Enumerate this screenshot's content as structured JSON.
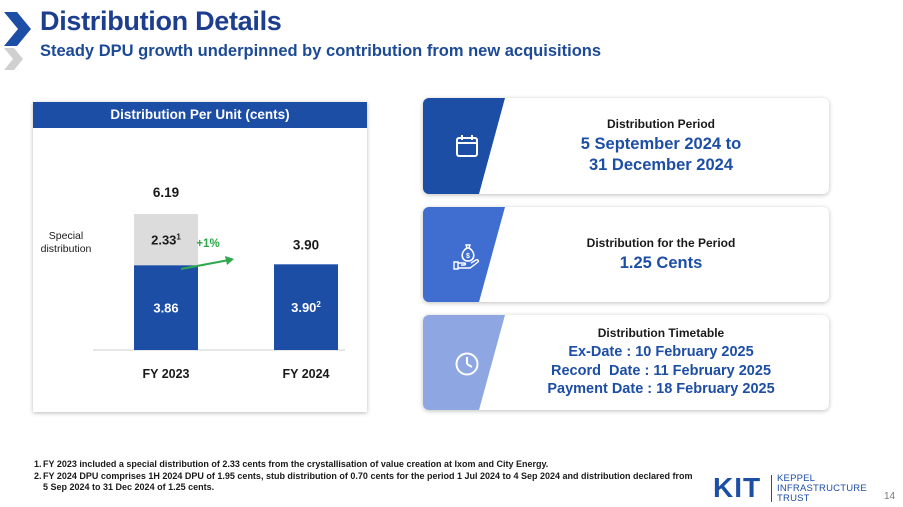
{
  "header": {
    "title": "Distribution Details",
    "subtitle": "Steady DPU growth underpinned by contribution from new acquisitions"
  },
  "chart": {
    "header_label": "Distribution Per Unit (cents)",
    "special_label_line1": "Special",
    "special_label_line2": "distribution",
    "growth_label": "+1%",
    "colors": {
      "base": "#1d4ea5",
      "special": "#dcdcdc",
      "growth_arrow": "#2ea84a"
    }
  },
  "chart_data": {
    "type": "bar",
    "categories": [
      "FY 2023",
      "FY 2024"
    ],
    "series": [
      {
        "values": [
          3.86,
          3.9
        ],
        "value_labels": [
          "3.86",
          "3.90"
        ],
        "superscripts": [
          "",
          "2"
        ]
      },
      {
        "name": "Special distribution",
        "values": [
          2.33,
          0
        ],
        "value_labels": [
          "2.33",
          ""
        ],
        "superscripts": [
          "1",
          ""
        ]
      }
    ],
    "totals": [
      6.19,
      3.9
    ],
    "total_labels": [
      "6.19",
      "3.90"
    ],
    "annotations": [
      "+1%"
    ],
    "title": "Distribution Per Unit (cents)",
    "stacked": true,
    "ylim": [
      0,
      6.19
    ]
  },
  "cards": [
    {
      "label": "Distribution Period",
      "value_lines": [
        "5 September 2024 to",
        "31 December 2024"
      ],
      "icon": "calendar-icon",
      "slab_color": "#1d4ea5"
    },
    {
      "label": "Distribution for the Period",
      "value_lines": [
        "1.25 Cents"
      ],
      "icon": "money-hand-icon",
      "slab_color": "#3f6ed0"
    },
    {
      "label": "Distribution Timetable",
      "value_lines": [
        "Ex-Date : 10 February 2025",
        "Record  Date : 11 February 2025",
        "Payment Date : 18 February 2025"
      ],
      "icon": "clock-icon",
      "slab_color": "#8ea6e2"
    }
  ],
  "footnotes": [
    {
      "num": "1.",
      "text": "FY 2023 included a special distribution of 2.33 cents from the crystallisation of value creation at Ixom and City Energy."
    },
    {
      "num": "2.",
      "text": "FY 2024 DPU comprises 1H 2024 DPU of 1.95 cents, stub distribution of 0.70 cents for the period 1 Jul 2024 to 4 Sep 2024 and distribution declared from 5 Sep 2024 to 31 Dec 2024 of 1.25 cents."
    }
  ],
  "logo": {
    "mark": "KIT",
    "line1": "KEPPEL",
    "line2": "INFRASTRUCTURE",
    "line3": "TRUST"
  },
  "page_number": "14"
}
